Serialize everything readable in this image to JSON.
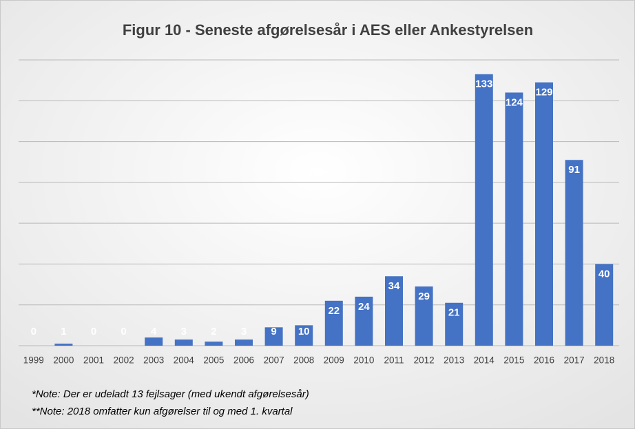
{
  "chart_data": {
    "type": "bar",
    "title": "Figur 10 - Seneste afgørelsesår i AES eller Ankestyrelsen",
    "categories": [
      "1999",
      "2000",
      "2001",
      "2002",
      "2003",
      "2004",
      "2005",
      "2006",
      "2007",
      "2008",
      "2009",
      "2010",
      "2011",
      "2012",
      "2013",
      "2014",
      "2015",
      "2016",
      "2017",
      "2018"
    ],
    "values": [
      0,
      1,
      0,
      0,
      4,
      3,
      2,
      3,
      9,
      10,
      22,
      24,
      34,
      29,
      21,
      133,
      124,
      129,
      91,
      40
    ],
    "color": "#4472c4",
    "ylim": [
      0,
      140
    ],
    "yticks": [
      0,
      20,
      40,
      60,
      80,
      100,
      120,
      140
    ],
    "grid": true,
    "notes": [
      "*Note: Der er udeladt 13 fejlsager (med ukendt afgørelsesår)",
      "**Note: 2018 omfatter kun afgørelser til og med 1. kvartal"
    ]
  }
}
